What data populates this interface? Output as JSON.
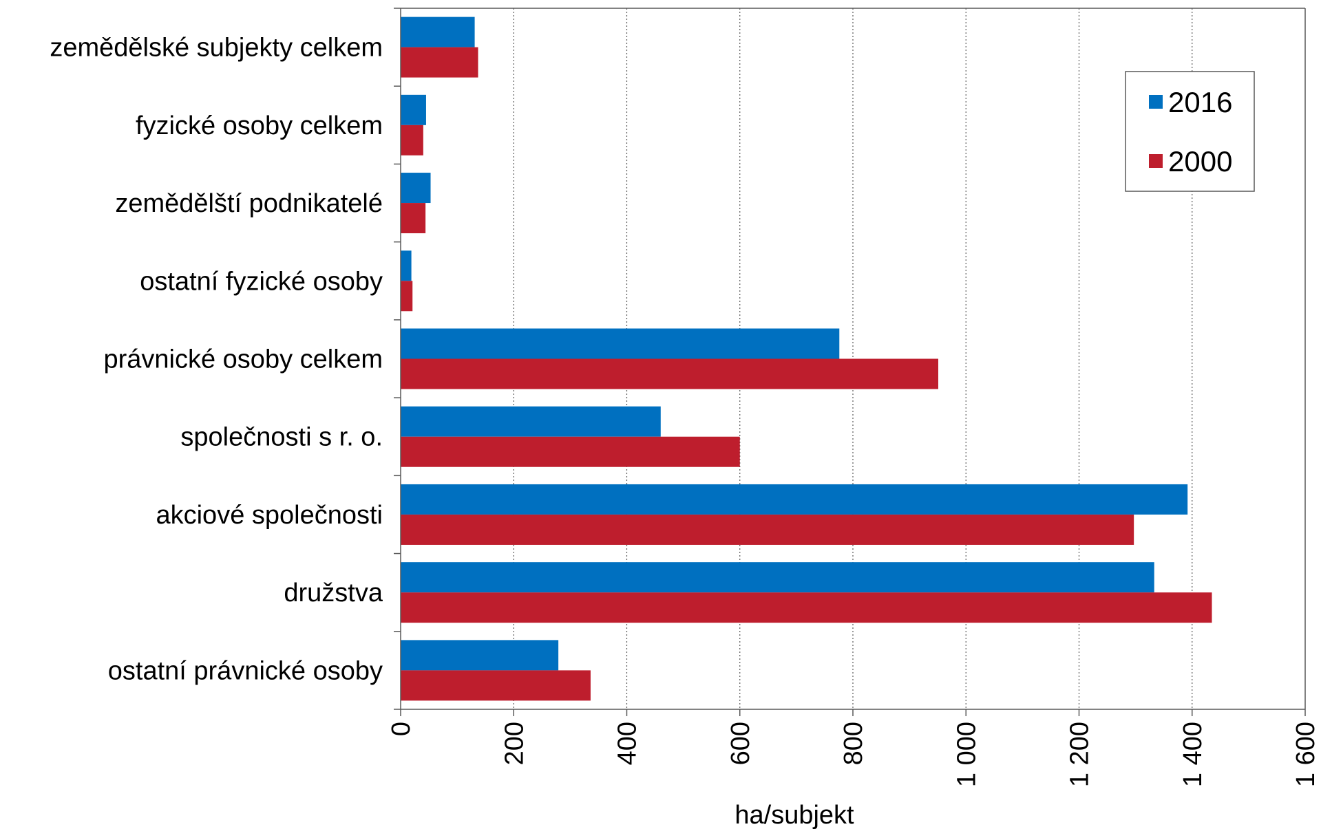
{
  "chart_data": {
    "type": "bar",
    "orientation": "horizontal",
    "categories": [
      "zemědělské subjekty celkem",
      "fyzické osoby celkem",
      "zemědělští podnikatelé",
      "ostatní fyzické osoby",
      "právnické osoby celkem",
      "společnosti s r. o.",
      "akciové společnosti",
      "družstva",
      "ostatní právnické osoby"
    ],
    "series": [
      {
        "name": "2016",
        "color": "#0070c0",
        "values": [
          131,
          45,
          53,
          19,
          776,
          460,
          1392,
          1333,
          279
        ]
      },
      {
        "name": "2000",
        "color": "#be1e2d",
        "values": [
          137,
          40,
          44,
          21,
          951,
          600,
          1297,
          1435,
          336
        ]
      }
    ],
    "xlabel": "ha/subjekt",
    "xlim": [
      0,
      1600
    ],
    "xticks": [
      0,
      200,
      400,
      600,
      800,
      1000,
      1200,
      1400,
      1600
    ],
    "xtick_labels": [
      "0",
      "200",
      "400",
      "600",
      "800",
      "1 000",
      "1 200",
      "1 400",
      "1 600"
    ],
    "grid": "vertical dotted",
    "legend_position": "top-right"
  }
}
